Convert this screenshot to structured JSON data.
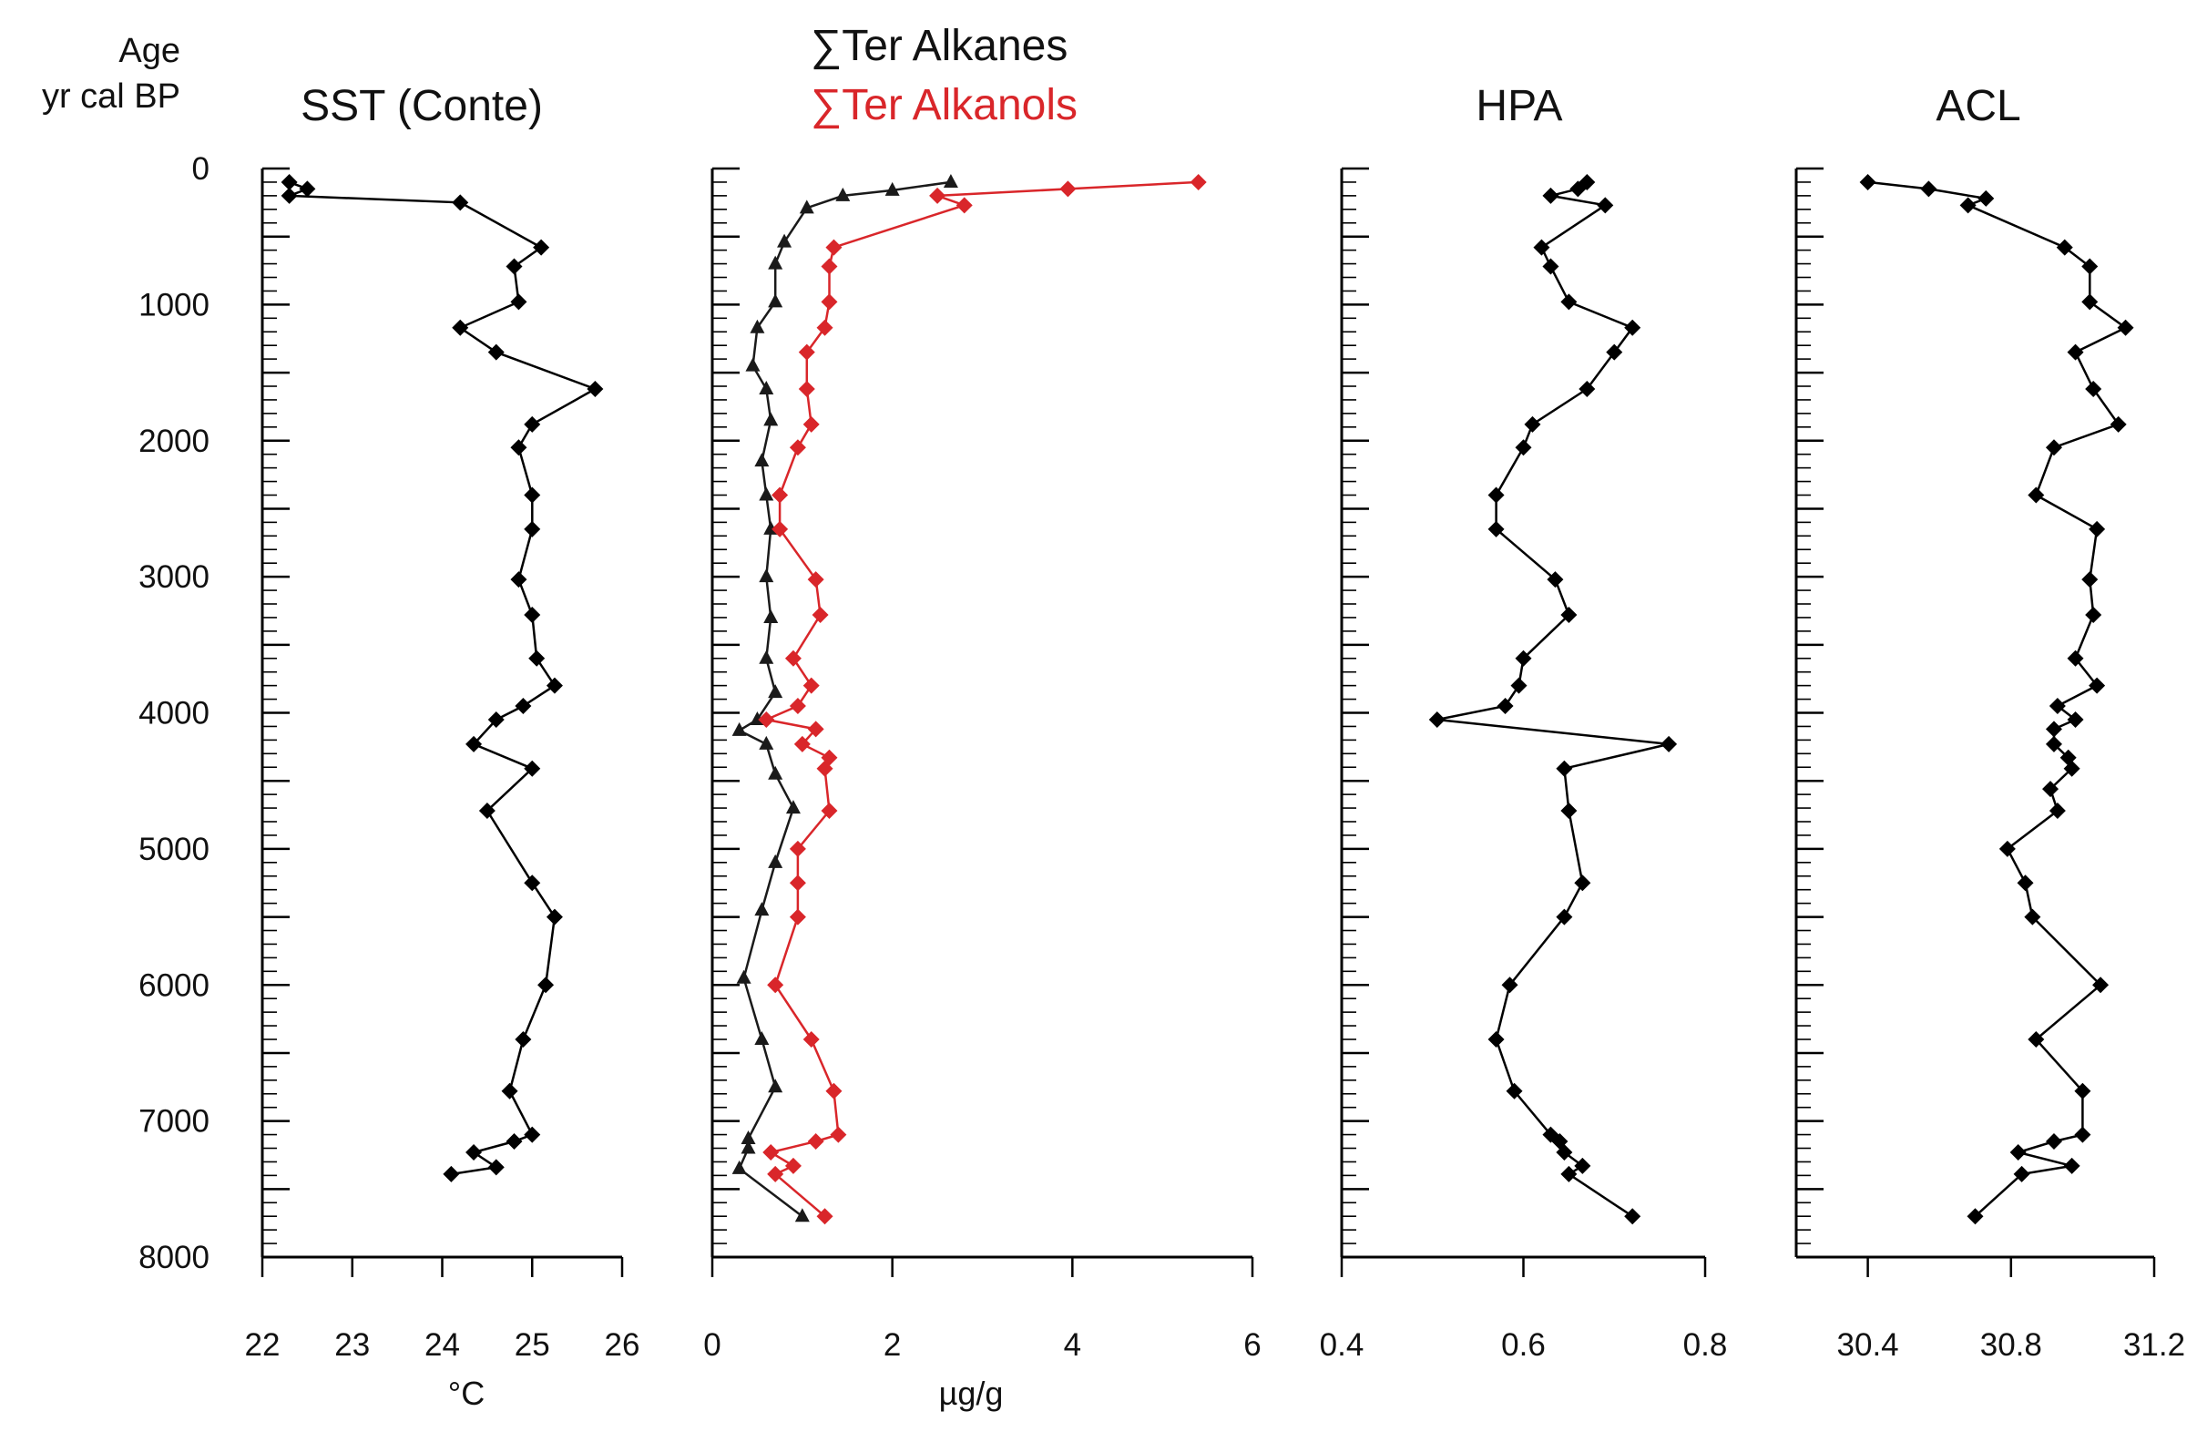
{
  "figure": {
    "age_label_line1": "Age",
    "age_label_line2": "yr cal BP"
  },
  "chart_data": [
    {
      "type": "line",
      "title": "SST (Conte)",
      "xlabel": "°C",
      "ylabel": "Age yr cal BP",
      "xlim": [
        22,
        26
      ],
      "ylim": [
        0,
        8000
      ],
      "xticks": [
        22,
        23,
        24,
        25,
        26
      ],
      "yticks": [
        0,
        1000,
        2000,
        3000,
        4000,
        5000,
        6000,
        7000,
        8000
      ],
      "series": [
        {
          "name": "SST",
          "color": "#000000",
          "marker": "diamond",
          "points": [
            [
              22.3,
              100
            ],
            [
              22.5,
              150
            ],
            [
              22.3,
              200
            ],
            [
              24.2,
              250
            ],
            [
              25.1,
              580
            ],
            [
              24.8,
              720
            ],
            [
              24.85,
              980
            ],
            [
              24.2,
              1170
            ],
            [
              24.6,
              1350
            ],
            [
              25.7,
              1620
            ],
            [
              25.0,
              1880
            ],
            [
              24.85,
              2050
            ],
            [
              25.0,
              2400
            ],
            [
              25.0,
              2650
            ],
            [
              24.85,
              3020
            ],
            [
              25.0,
              3280
            ],
            [
              25.05,
              3600
            ],
            [
              25.25,
              3800
            ],
            [
              24.9,
              3950
            ],
            [
              24.6,
              4050
            ],
            [
              24.35,
              4230
            ],
            [
              25.0,
              4410
            ],
            [
              24.5,
              4720
            ],
            [
              25.0,
              5250
            ],
            [
              25.25,
              5500
            ],
            [
              25.15,
              6000
            ],
            [
              24.9,
              6400
            ],
            [
              24.75,
              6780
            ],
            [
              25.0,
              7100
            ],
            [
              24.8,
              7150
            ],
            [
              24.35,
              7230
            ],
            [
              24.6,
              7340
            ],
            [
              24.1,
              7390
            ]
          ]
        }
      ]
    },
    {
      "type": "line",
      "title": "∑Ter Alkanes",
      "title2": "∑Ter Alkanols",
      "xlabel": "µg/g",
      "ylabel": "Age yr cal BP",
      "xlim": [
        0,
        6
      ],
      "ylim": [
        0,
        8000
      ],
      "xticks": [
        0,
        2,
        4,
        6
      ],
      "yticks": [
        0,
        1000,
        2000,
        3000,
        4000,
        5000,
        6000,
        7000,
        8000
      ],
      "series": [
        {
          "name": "∑Ter Alkanes",
          "color": "#1a1a1a",
          "marker": "triangle",
          "points": [
            [
              2.65,
              100
            ],
            [
              2.0,
              160
            ],
            [
              1.45,
              200
            ],
            [
              1.05,
              290
            ],
            [
              0.8,
              540
            ],
            [
              0.7,
              700
            ],
            [
              0.7,
              980
            ],
            [
              0.5,
              1170
            ],
            [
              0.45,
              1450
            ],
            [
              0.6,
              1620
            ],
            [
              0.65,
              1850
            ],
            [
              0.55,
              2150
            ],
            [
              0.6,
              2400
            ],
            [
              0.65,
              2650
            ],
            [
              0.6,
              3000
            ],
            [
              0.65,
              3300
            ],
            [
              0.6,
              3600
            ],
            [
              0.7,
              3850
            ],
            [
              0.5,
              4050
            ],
            [
              0.3,
              4130
            ],
            [
              0.6,
              4230
            ],
            [
              0.7,
              4450
            ],
            [
              0.9,
              4700
            ],
            [
              0.7,
              5100
            ],
            [
              0.55,
              5450
            ],
            [
              0.35,
              5950
            ],
            [
              0.55,
              6400
            ],
            [
              0.7,
              6750
            ],
            [
              0.4,
              7130
            ],
            [
              0.4,
              7200
            ],
            [
              0.3,
              7350
            ],
            [
              1.0,
              7700
            ]
          ]
        },
        {
          "name": "∑Ter Alkanols",
          "color": "#d9262a",
          "marker": "diamond",
          "points": [
            [
              5.4,
              100
            ],
            [
              3.95,
              150
            ],
            [
              2.5,
              200
            ],
            [
              2.8,
              270
            ],
            [
              1.35,
              580
            ],
            [
              1.3,
              720
            ],
            [
              1.3,
              980
            ],
            [
              1.25,
              1170
            ],
            [
              1.05,
              1350
            ],
            [
              1.05,
              1620
            ],
            [
              1.1,
              1880
            ],
            [
              0.95,
              2050
            ],
            [
              0.75,
              2400
            ],
            [
              0.75,
              2650
            ],
            [
              1.15,
              3020
            ],
            [
              1.2,
              3280
            ],
            [
              0.9,
              3600
            ],
            [
              1.1,
              3800
            ],
            [
              0.95,
              3950
            ],
            [
              0.6,
              4050
            ],
            [
              1.15,
              4120
            ],
            [
              1.0,
              4230
            ],
            [
              1.3,
              4330
            ],
            [
              1.25,
              4410
            ],
            [
              1.3,
              4720
            ],
            [
              0.95,
              5000
            ],
            [
              0.95,
              5250
            ],
            [
              0.95,
              5500
            ],
            [
              0.7,
              6000
            ],
            [
              1.1,
              6400
            ],
            [
              1.35,
              6780
            ],
            [
              1.4,
              7100
            ],
            [
              1.15,
              7150
            ],
            [
              0.65,
              7230
            ],
            [
              0.9,
              7330
            ],
            [
              0.7,
              7390
            ],
            [
              1.25,
              7700
            ]
          ]
        }
      ]
    },
    {
      "type": "line",
      "title": "HPA",
      "xlabel": "",
      "ylabel": "Age yr cal BP",
      "xlim": [
        0.4,
        0.8
      ],
      "ylim": [
        0,
        8000
      ],
      "xticks": [
        0.4,
        0.6,
        0.8
      ],
      "yticks": [
        0,
        1000,
        2000,
        3000,
        4000,
        5000,
        6000,
        7000,
        8000
      ],
      "series": [
        {
          "name": "HPA",
          "color": "#000000",
          "marker": "diamond",
          "points": [
            [
              0.67,
              100
            ],
            [
              0.66,
              150
            ],
            [
              0.63,
              200
            ],
            [
              0.69,
              270
            ],
            [
              0.62,
              580
            ],
            [
              0.63,
              720
            ],
            [
              0.65,
              980
            ],
            [
              0.72,
              1170
            ],
            [
              0.7,
              1350
            ],
            [
              0.67,
              1620
            ],
            [
              0.61,
              1880
            ],
            [
              0.6,
              2050
            ],
            [
              0.57,
              2400
            ],
            [
              0.57,
              2650
            ],
            [
              0.635,
              3020
            ],
            [
              0.65,
              3280
            ],
            [
              0.6,
              3600
            ],
            [
              0.595,
              3800
            ],
            [
              0.58,
              3950
            ],
            [
              0.505,
              4050
            ],
            [
              0.76,
              4230
            ],
            [
              0.645,
              4410
            ],
            [
              0.65,
              4720
            ],
            [
              0.665,
              5250
            ],
            [
              0.645,
              5500
            ],
            [
              0.585,
              6000
            ],
            [
              0.57,
              6400
            ],
            [
              0.59,
              6780
            ],
            [
              0.63,
              7100
            ],
            [
              0.64,
              7150
            ],
            [
              0.645,
              7230
            ],
            [
              0.665,
              7330
            ],
            [
              0.65,
              7390
            ],
            [
              0.72,
              7700
            ]
          ]
        }
      ]
    },
    {
      "type": "line",
      "title": "ACL",
      "xlabel": "",
      "ylabel": "Age yr cal BP",
      "xlim": [
        30.2,
        31.2
      ],
      "ylim": [
        0,
        8000
      ],
      "xticks": [
        30.4,
        30.8,
        31.2
      ],
      "yticks": [
        0,
        1000,
        2000,
        3000,
        4000,
        5000,
        6000,
        7000,
        8000
      ],
      "series": [
        {
          "name": "ACL",
          "color": "#000000",
          "marker": "diamond",
          "points": [
            [
              30.4,
              100
            ],
            [
              30.57,
              150
            ],
            [
              30.73,
              220
            ],
            [
              30.68,
              270
            ],
            [
              30.95,
              580
            ],
            [
              31.02,
              720
            ],
            [
              31.02,
              980
            ],
            [
              31.12,
              1170
            ],
            [
              30.98,
              1350
            ],
            [
              31.03,
              1620
            ],
            [
              31.1,
              1880
            ],
            [
              30.92,
              2050
            ],
            [
              30.87,
              2400
            ],
            [
              31.04,
              2650
            ],
            [
              31.02,
              3020
            ],
            [
              31.03,
              3280
            ],
            [
              30.98,
              3600
            ],
            [
              31.04,
              3800
            ],
            [
              30.93,
              3950
            ],
            [
              30.98,
              4050
            ],
            [
              30.92,
              4120
            ],
            [
              30.92,
              4230
            ],
            [
              30.96,
              4330
            ],
            [
              30.97,
              4410
            ],
            [
              30.91,
              4560
            ],
            [
              30.93,
              4720
            ],
            [
              30.79,
              5000
            ],
            [
              30.84,
              5250
            ],
            [
              30.86,
              5500
            ],
            [
              31.05,
              6000
            ],
            [
              30.87,
              6400
            ],
            [
              31.0,
              6780
            ],
            [
              31.0,
              7100
            ],
            [
              30.92,
              7150
            ],
            [
              30.82,
              7230
            ],
            [
              30.97,
              7330
            ],
            [
              30.83,
              7390
            ],
            [
              30.7,
              7700
            ]
          ]
        }
      ]
    }
  ]
}
